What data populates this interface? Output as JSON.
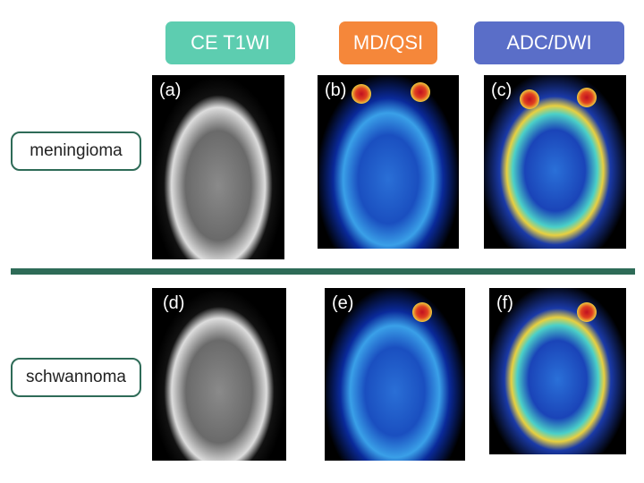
{
  "headers": [
    {
      "label": "CE T1WI",
      "color": "#5dcdb0"
    },
    {
      "label": "MD/QSI",
      "color": "#f5873a"
    },
    {
      "label": "ADC/DWI",
      "color": "#5a6ec8"
    }
  ],
  "rows": [
    {
      "label": "meningioma",
      "panels": [
        "(a)",
        "(b)",
        "(c)"
      ]
    },
    {
      "label": "schwannoma",
      "panels": [
        "(d)",
        "(e)",
        "(f)"
      ]
    }
  ],
  "separator_color": "#2e6b57"
}
